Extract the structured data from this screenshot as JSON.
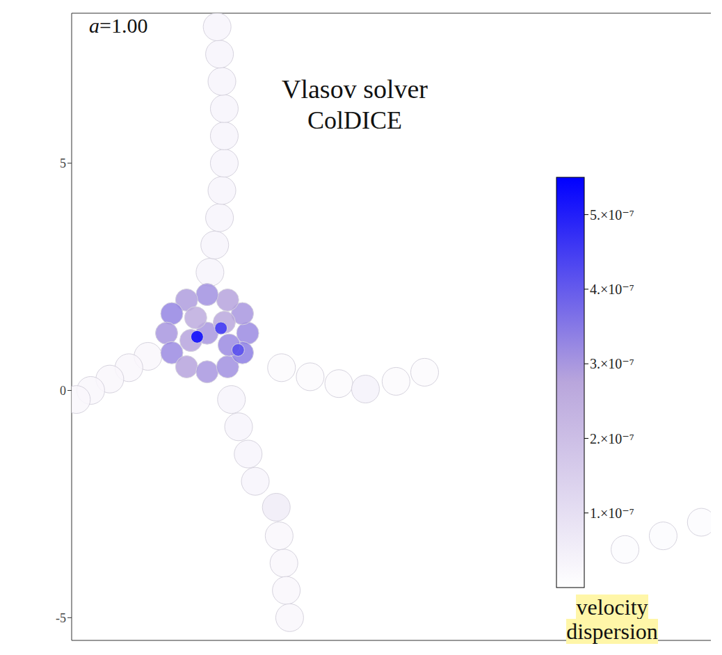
{
  "chart_data": {
    "type": "heatmap",
    "title": "Vlasov solver",
    "subtitle": "ColDICE",
    "annotation": "a=1.00",
    "xlim": [
      -3,
      10.4
    ],
    "ylim": [
      -5.5,
      8.3
    ],
    "yticks": [
      -5,
      0,
      5
    ],
    "tick_labels": "y",
    "cells": [
      {
        "x": -0.1,
        "y": 2.6,
        "value": 3e-08
      },
      {
        "x": 0.0,
        "y": 3.2,
        "value": 3e-08
      },
      {
        "x": 0.1,
        "y": 3.8,
        "value": 3e-08
      },
      {
        "x": 0.15,
        "y": 4.4,
        "value": 3e-08
      },
      {
        "x": 0.2,
        "y": 5.0,
        "value": 3e-08
      },
      {
        "x": 0.2,
        "y": 5.6,
        "value": 3e-08
      },
      {
        "x": 0.2,
        "y": 6.2,
        "value": 3e-08
      },
      {
        "x": 0.15,
        "y": 6.8,
        "value": 3e-08
      },
      {
        "x": 0.1,
        "y": 7.4,
        "value": 3e-08
      },
      {
        "x": 0.05,
        "y": 8.0,
        "value": 3e-08
      },
      {
        "x": -1.4,
        "y": 0.75,
        "value": 2.5e-08
      },
      {
        "x": -1.8,
        "y": 0.5,
        "value": 2.5e-08
      },
      {
        "x": -2.2,
        "y": 0.25,
        "value": 2.5e-08
      },
      {
        "x": -2.6,
        "y": 0.0,
        "value": 2.5e-08
      },
      {
        "x": -2.9,
        "y": -0.2,
        "value": 2.5e-08
      },
      {
        "x": 0.35,
        "y": -0.2,
        "value": 3e-08
      },
      {
        "x": 0.5,
        "y": -0.8,
        "value": 3e-08
      },
      {
        "x": 0.7,
        "y": -1.4,
        "value": 3e-08
      },
      {
        "x": 0.85,
        "y": -2.0,
        "value": 3e-08
      },
      {
        "x": 1.29,
        "y": -2.57,
        "value": 6e-08
      },
      {
        "x": 1.35,
        "y": -3.2,
        "value": 2.5e-08
      },
      {
        "x": 1.45,
        "y": -3.8,
        "value": 2.5e-08
      },
      {
        "x": 1.5,
        "y": -4.4,
        "value": 2.5e-08
      },
      {
        "x": 1.57,
        "y": -5.0,
        "value": 2.5e-08
      },
      {
        "x": 1.4,
        "y": 0.5,
        "value": 1.5e-08
      },
      {
        "x": 2.0,
        "y": 0.3,
        "value": 1.5e-08
      },
      {
        "x": 2.6,
        "y": 0.15,
        "value": 1.5e-08
      },
      {
        "x": 3.16,
        "y": 0.03,
        "value": 4e-08
      },
      {
        "x": 3.8,
        "y": 0.2,
        "value": 1.5e-08
      },
      {
        "x": 4.4,
        "y": 0.4,
        "value": 1.5e-08
      },
      {
        "x": 8.6,
        "y": -3.5,
        "value": 1e-08
      },
      {
        "x": 9.4,
        "y": -3.2,
        "value": 1e-08
      },
      {
        "x": 10.2,
        "y": -2.9,
        "value": 1e-08
      },
      {
        "x": 0.69,
        "y": 1.26,
        "value": 3.2e-07
      },
      {
        "x": 0.58,
        "y": 1.69,
        "value": 3e-07
      },
      {
        "x": 0.27,
        "y": 1.99,
        "value": 2.8e-07
      },
      {
        "x": -0.16,
        "y": 2.11,
        "value": 3.1e-07
      },
      {
        "x": -0.59,
        "y": 1.99,
        "value": 2.9e-07
      },
      {
        "x": -0.9,
        "y": 1.69,
        "value": 3.3e-07
      },
      {
        "x": -1.01,
        "y": 1.26,
        "value": 3e-07
      },
      {
        "x": -0.9,
        "y": 0.83,
        "value": 3.2e-07
      },
      {
        "x": -0.59,
        "y": 0.52,
        "value": 2.8e-07
      },
      {
        "x": -0.16,
        "y": 0.41,
        "value": 3e-07
      },
      {
        "x": 0.27,
        "y": 0.52,
        "value": 3.1e-07
      },
      {
        "x": 0.58,
        "y": 0.83,
        "value": 3.4e-07
      },
      {
        "x": -0.16,
        "y": 1.26,
        "value": 3e-07
      },
      {
        "x": -0.5,
        "y": 1.1,
        "value": 2.8e-07
      },
      {
        "x": 0.2,
        "y": 1.5,
        "value": 2.7e-07
      },
      {
        "x": -0.4,
        "y": 1.6,
        "value": 2.6e-07
      },
      {
        "x": 0.3,
        "y": 1.0,
        "value": 3.2e-07
      },
      {
        "x": -0.37,
        "y": 1.18,
        "value": 5.4e-07
      },
      {
        "x": 0.13,
        "y": 1.37,
        "value": 4.6e-07
      },
      {
        "x": 0.49,
        "y": 0.89,
        "value": 4.2e-07
      }
    ],
    "colorbar": {
      "range": [
        0,
        5.5e-07
      ],
      "ticks": [
        {
          "value": 1e-07,
          "label": "1.×10⁻⁷"
        },
        {
          "value": 2e-07,
          "label": "2.×10⁻⁷"
        },
        {
          "value": 3e-07,
          "label": "3.×10⁻⁷"
        },
        {
          "value": 4e-07,
          "label": "4.×10⁻⁷"
        },
        {
          "value": 5e-07,
          "label": "5.×10⁻⁷"
        }
      ],
      "label": "velocity dispersion",
      "colors": [
        "#ffffff",
        "#b9a6dc",
        "#0000ff"
      ]
    }
  }
}
